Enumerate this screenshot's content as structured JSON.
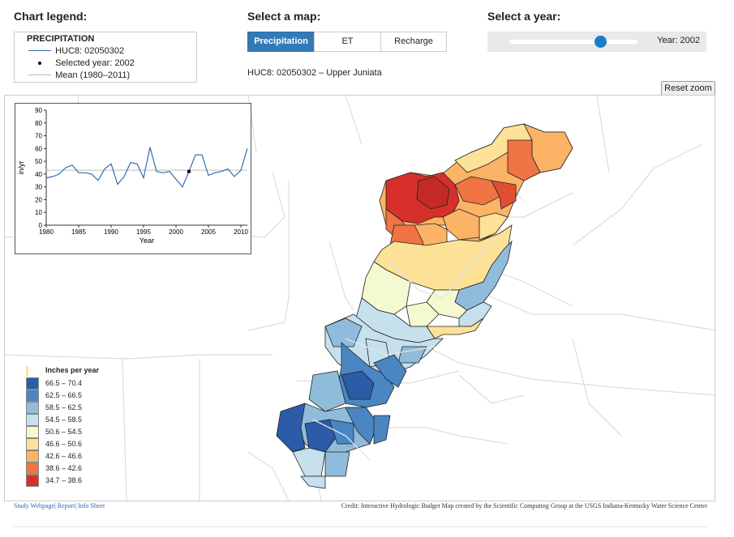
{
  "legend": {
    "heading": "Chart legend:",
    "title": "PRECIPITATION",
    "items": [
      {
        "label": "HUC8: 02050302",
        "symbol": "line",
        "color": "#2f6db5"
      },
      {
        "label": "Selected year: 2002",
        "symbol": "dot",
        "color": "#000000"
      },
      {
        "label": "Mean (1980–2011)",
        "symbol": "line",
        "color": "#bbbbbb"
      }
    ]
  },
  "map_select": {
    "heading": "Select a map:",
    "buttons": [
      {
        "label": "Precipitation",
        "active": true
      },
      {
        "label": "ET",
        "active": false
      },
      {
        "label": "Recharge",
        "active": false
      }
    ],
    "huc_label": "HUC8: 02050302 – Upper Juniata"
  },
  "year_select": {
    "heading": "Select a year:",
    "year_text": "Year: 2002",
    "value": 2002,
    "min": 1980,
    "max": 2011
  },
  "reset_zoom": "Reset zoom",
  "chart_data": {
    "type": "line",
    "x": [
      1980,
      1981,
      1982,
      1983,
      1984,
      1985,
      1986,
      1987,
      1988,
      1989,
      1990,
      1991,
      1992,
      1993,
      1994,
      1995,
      1996,
      1997,
      1998,
      1999,
      2000,
      2001,
      2002,
      2003,
      2004,
      2005,
      2006,
      2007,
      2008,
      2009,
      2010,
      2011
    ],
    "series": [
      {
        "name": "HUC8: 02050302",
        "values": [
          37,
          38,
          40,
          45,
          47,
          41,
          41,
          40,
          35,
          44,
          48,
          32,
          38,
          49,
          48,
          37,
          61,
          42,
          41,
          42,
          36,
          30,
          42,
          55,
          55,
          39,
          41,
          42,
          44,
          38,
          43,
          60
        ]
      }
    ],
    "mean": 43,
    "selected": {
      "x": 2002,
      "y": 42
    },
    "xlabel": "Year",
    "ylabel": "in/yr",
    "ylim": [
      0,
      90
    ],
    "xlim": [
      1980,
      2011
    ],
    "x_ticks": [
      "1980",
      "1985",
      "1990",
      "1995",
      "2000",
      "2005",
      "2010"
    ],
    "y_ticks": [
      "0",
      "10",
      "20",
      "30",
      "40",
      "50",
      "60",
      "70",
      "80",
      "90"
    ]
  },
  "color_legend": {
    "title": "Inches per year",
    "classes": [
      {
        "label": "66.5 – 70.4",
        "color": "#2c5ba8"
      },
      {
        "label": "62.5 – 66.5",
        "color": "#4a86c2"
      },
      {
        "label": "58.5 – 62.5",
        "color": "#8fbcdb"
      },
      {
        "label": "54.5 – 58.5",
        "color": "#c6e0ee"
      },
      {
        "label": "50.6 – 54.5",
        "color": "#f4f9d0"
      },
      {
        "label": "46.6 – 50.6",
        "color": "#fde197"
      },
      {
        "label": "42.6 – 46.6",
        "color": "#fbb366"
      },
      {
        "label": "38.6 – 42.6",
        "color": "#f07444"
      },
      {
        "label": "34.7 – 38.6",
        "color": "#d7302b"
      }
    ]
  },
  "footer": {
    "links": [
      "Study Webpage",
      "Report",
      "Info Sheet"
    ],
    "separator": "|",
    "credit": "Credit: Interactive Hydrologic Budget Map created by the Scientific Computing Group at the USGS Indiana-Kentucky Water Science Center"
  }
}
